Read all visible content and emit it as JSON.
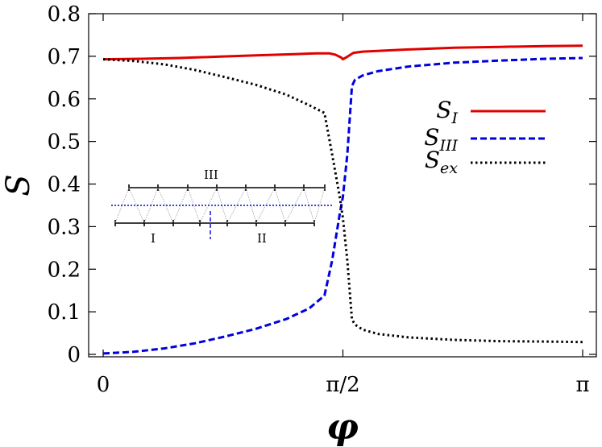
{
  "chart_data": {
    "type": "line",
    "xlabel": "φ",
    "ylabel": "S",
    "xlim": [
      0,
      3.14159
    ],
    "ylim": [
      0,
      0.8
    ],
    "grid": false,
    "legend_position": "right",
    "x_ticks": [
      {
        "value": 0,
        "label": "0"
      },
      {
        "value": 1.5708,
        "label": "π/2"
      },
      {
        "value": 3.14159,
        "label": "π"
      }
    ],
    "y_ticks": [
      {
        "value": 0,
        "label": "0"
      },
      {
        "value": 0.1,
        "label": "0.1"
      },
      {
        "value": 0.2,
        "label": "0.2"
      },
      {
        "value": 0.3,
        "label": "0.3"
      },
      {
        "value": 0.4,
        "label": "0.4"
      },
      {
        "value": 0.5,
        "label": "0.5"
      },
      {
        "value": 0.6,
        "label": "0.6"
      },
      {
        "value": 0.7,
        "label": "0.7"
      },
      {
        "value": 0.8,
        "label": "0.8"
      }
    ],
    "series": [
      {
        "name": "S_I",
        "legend_main": "S",
        "legend_sub": "I",
        "color": "#e00000",
        "dash": "solid",
        "x": [
          0,
          0.25,
          0.5,
          0.75,
          1.0,
          1.25,
          1.4,
          1.48,
          1.52,
          1.56,
          1.5708,
          1.6,
          1.64,
          1.7,
          2.0,
          2.3,
          2.6,
          2.9,
          3.14159
        ],
        "y": [
          0.693,
          0.694,
          0.696,
          0.699,
          0.702,
          0.705,
          0.707,
          0.707,
          0.704,
          0.697,
          0.693,
          0.699,
          0.708,
          0.711,
          0.716,
          0.72,
          0.722,
          0.724,
          0.725
        ]
      },
      {
        "name": "S_III",
        "legend_main": "S",
        "legend_sub": "III",
        "color": "#0000dd",
        "dash": "dashed",
        "x": [
          0,
          0.2,
          0.4,
          0.6,
          0.8,
          1.0,
          1.2,
          1.35,
          1.45,
          1.5,
          1.55,
          1.5708,
          1.6,
          1.63,
          1.65,
          1.7,
          1.8,
          2.0,
          2.3,
          2.6,
          2.9,
          3.14159
        ],
        "y": [
          0.002,
          0.006,
          0.014,
          0.026,
          0.042,
          0.06,
          0.083,
          0.108,
          0.138,
          0.22,
          0.33,
          0.37,
          0.47,
          0.63,
          0.645,
          0.655,
          0.665,
          0.676,
          0.685,
          0.69,
          0.694,
          0.696
        ]
      },
      {
        "name": "S_ex",
        "legend_main": "S",
        "legend_sub": "ex",
        "color": "#000000",
        "dash": "dotted",
        "x": [
          0,
          0.2,
          0.4,
          0.6,
          0.8,
          1.0,
          1.2,
          1.35,
          1.45,
          1.5,
          1.55,
          1.5708,
          1.6,
          1.63,
          1.65,
          1.7,
          1.8,
          2.0,
          2.3,
          2.6,
          2.9,
          3.14159
        ],
        "y": [
          0.693,
          0.689,
          0.681,
          0.668,
          0.651,
          0.633,
          0.61,
          0.585,
          0.567,
          0.47,
          0.37,
          0.32,
          0.22,
          0.082,
          0.07,
          0.058,
          0.048,
          0.04,
          0.034,
          0.031,
          0.03,
          0.029
        ]
      }
    ],
    "inset": {
      "chain_labels": [
        "III",
        "I",
        "II"
      ]
    }
  }
}
